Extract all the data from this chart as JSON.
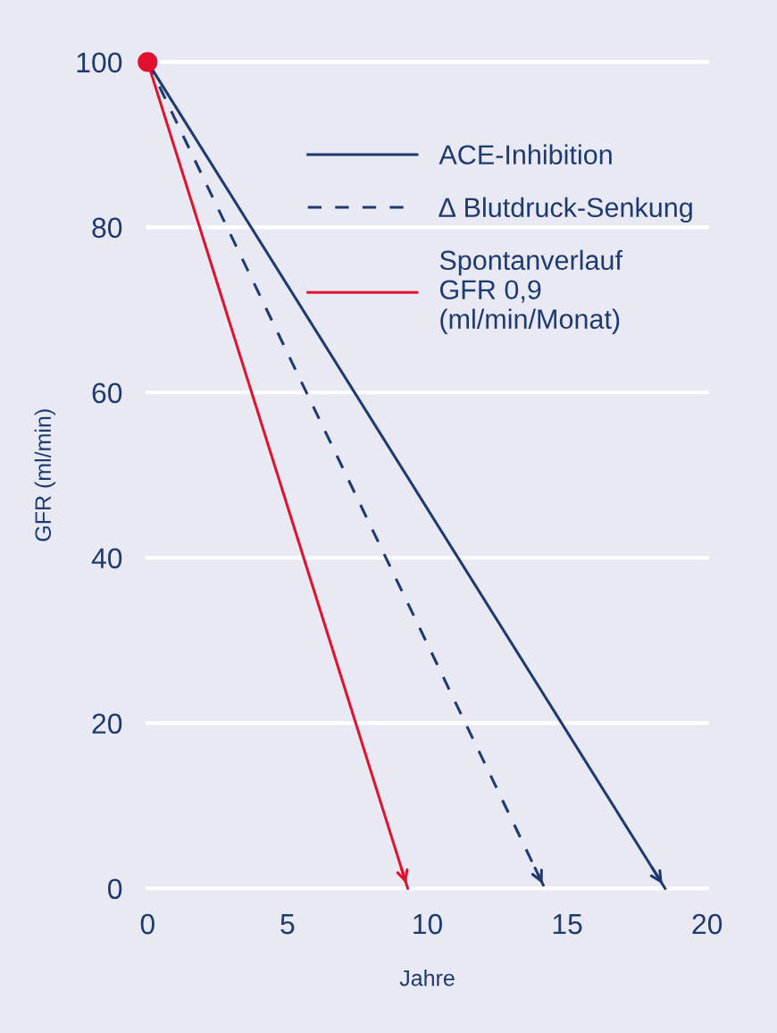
{
  "chart_data": {
    "type": "line",
    "xlabel": "Jahre",
    "ylabel": "GFR (ml/min)",
    "xlim": [
      0,
      20
    ],
    "ylim": [
      0,
      100
    ],
    "xticks": [
      0,
      5,
      10,
      15,
      20
    ],
    "yticks": [
      0,
      20,
      40,
      60,
      80,
      100
    ],
    "grid": "y",
    "legend": "top right",
    "series": [
      {
        "name": "ACE-Inhibition",
        "color": "#1f3a6e",
        "line_style": "solid",
        "x": [
          0,
          18.5
        ],
        "values": [
          100,
          0
        ]
      },
      {
        "name": "∆ Blutdruck-Senkung",
        "color": "#1f3a6e",
        "line_style": "dashed",
        "x": [
          0,
          14.2
        ],
        "values": [
          100,
          0
        ]
      },
      {
        "name": "Spontanverlauf\nGFR 0,9\n(ml/min/Monat)",
        "color": "#e0122e",
        "line_style": "solid",
        "marker": "circle",
        "x": [
          0,
          9.3
        ],
        "values": [
          100,
          0
        ]
      }
    ]
  }
}
